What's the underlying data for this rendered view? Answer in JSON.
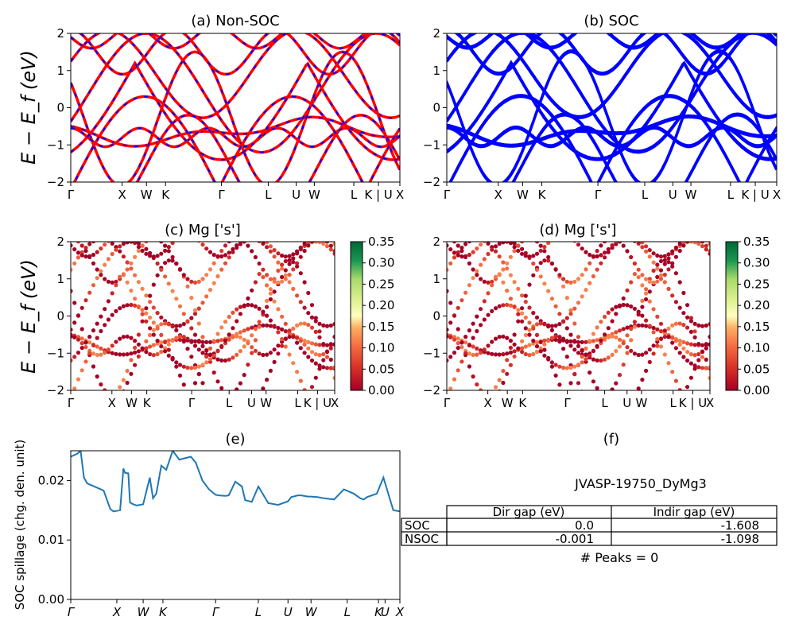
{
  "panel_a": {
    "title": "(a) Non-SOC",
    "ylabel": "E − E_f (eV)",
    "yticks": [
      "2",
      "1",
      "0",
      "−1",
      "−2"
    ],
    "xticks": [
      "Γ",
      "X",
      "W",
      "K",
      "Γ",
      "L",
      "U",
      "W",
      "L",
      "K | U",
      "X"
    ]
  },
  "panel_b": {
    "title": "(b) SOC",
    "yticks": [
      "2",
      "1",
      "0",
      "−1",
      "−2"
    ],
    "xticks": [
      "Γ",
      "X",
      "W",
      "K",
      "Γ",
      "L",
      "U",
      "W",
      "L",
      "K | U",
      "X"
    ]
  },
  "panel_c": {
    "title": "(c)  Mg ['s']",
    "ylabel": "E − E_f (eV)",
    "yticks": [
      "2",
      "1",
      "0",
      "−1",
      "−2"
    ],
    "xticks": [
      "Γ",
      "X",
      "W",
      "K",
      "Γ",
      "L",
      "U",
      "W",
      "L",
      "K | U",
      "X"
    ],
    "colorbar_ticks": [
      "0.35",
      "0.30",
      "0.25",
      "0.20",
      "0.15",
      "0.10",
      "0.05",
      "0.00"
    ]
  },
  "panel_d": {
    "title": "(d) Mg ['s']",
    "yticks": [
      "2",
      "1",
      "0",
      "−1",
      "−2"
    ],
    "xticks": [
      "Γ",
      "X",
      "W",
      "K",
      "Γ",
      "L",
      "U",
      "W",
      "L",
      "K | U",
      "X"
    ],
    "colorbar_ticks": [
      "0.35",
      "0.30",
      "0.25",
      "0.20",
      "0.15",
      "0.10",
      "0.05",
      "0.00"
    ]
  },
  "panel_e": {
    "title": "(e)",
    "ylabel": "SOC spillage (chg. den. unit)",
    "yticks": [
      "0.02",
      "0.01",
      "0.00"
    ],
    "xticks": [
      "Γ",
      "X",
      "W",
      "K",
      "Γ",
      "L",
      "U",
      "W",
      "L",
      "K",
      "U",
      "X"
    ]
  },
  "panel_f": {
    "title": "(f)",
    "material": "JVASP-19750_DyMg3",
    "table": {
      "headers": [
        "Dir gap (eV)",
        "Indir gap (eV)"
      ],
      "rows": [
        {
          "label": "SOC",
          "dir": "0.0",
          "indir": "-1.608"
        },
        {
          "label": "NSOC",
          "dir": "-0.001",
          "indir": "-1.098"
        }
      ]
    },
    "peaks": "# Peaks = 0"
  },
  "colors": {
    "nonsoc_line": "#ff0000",
    "nonsoc_dash": "#0000ff",
    "soc_line": "#0000ff",
    "spillage_line": "#1f77b4"
  },
  "chart_data": [
    {
      "type": "line",
      "panel": "a",
      "ylim": [
        -2,
        2
      ],
      "x_symmetry_points": [
        0,
        0.156,
        0.23,
        0.288,
        0.458,
        0.6,
        0.685,
        0.74,
        0.86,
        0.935,
        1.0
      ],
      "bands_description": "band structure, non-SOC (red solid with blue dashes)"
    },
    {
      "type": "line",
      "panel": "b",
      "ylim": [
        -2,
        2
      ],
      "x_symmetry_points": [
        0,
        0.156,
        0.23,
        0.288,
        0.458,
        0.6,
        0.685,
        0.74,
        0.86,
        0.935,
        1.0
      ]
    },
    {
      "type": "scatter",
      "panel": "c",
      "ylim": [
        -2,
        2
      ],
      "colorbar_range": [
        0.0,
        0.35
      ]
    },
    {
      "type": "scatter",
      "panel": "d",
      "ylim": [
        -2,
        2
      ],
      "colorbar_range": [
        0.0,
        0.35
      ]
    },
    {
      "type": "line",
      "panel": "e",
      "ylim": [
        0.0,
        0.025
      ],
      "x": [
        0,
        0.02,
        0.03,
        0.04,
        0.05,
        0.08,
        0.1,
        0.12,
        0.13,
        0.15,
        0.16,
        0.165,
        0.175,
        0.18,
        0.19,
        0.2,
        0.22,
        0.24,
        0.25,
        0.26,
        0.275,
        0.29,
        0.31,
        0.33,
        0.35,
        0.365,
        0.38,
        0.4,
        0.42,
        0.44,
        0.45,
        0.47,
        0.48,
        0.5,
        0.52,
        0.53,
        0.55,
        0.57,
        0.6,
        0.63,
        0.66,
        0.67,
        0.69,
        0.7,
        0.72,
        0.73,
        0.75,
        0.77,
        0.8,
        0.83,
        0.86,
        0.88,
        0.89,
        0.9,
        0.93,
        0.95,
        0.98,
        0.99,
        1.0
      ],
      "y": [
        0.024,
        0.0245,
        0.025,
        0.0205,
        0.0195,
        0.0188,
        0.0183,
        0.0152,
        0.0148,
        0.015,
        0.022,
        0.0213,
        0.0212,
        0.0163,
        0.016,
        0.0158,
        0.016,
        0.0205,
        0.017,
        0.0178,
        0.0225,
        0.0218,
        0.025,
        0.0235,
        0.0238,
        0.024,
        0.023,
        0.02,
        0.0185,
        0.0176,
        0.0175,
        0.0174,
        0.0175,
        0.0198,
        0.019,
        0.0167,
        0.0164,
        0.019,
        0.0162,
        0.0159,
        0.0165,
        0.0172,
        0.0175,
        0.0175,
        0.0173,
        0.0173,
        0.0172,
        0.017,
        0.0168,
        0.0185,
        0.0178,
        0.017,
        0.0168,
        0.0172,
        0.0178,
        0.0205,
        0.015,
        0.0149,
        0.0148
      ],
      "x_tick_positions": [
        0,
        0.14,
        0.22,
        0.28,
        0.44,
        0.57,
        0.66,
        0.73,
        0.84,
        0.935,
        0.955,
        1.0
      ]
    }
  ]
}
